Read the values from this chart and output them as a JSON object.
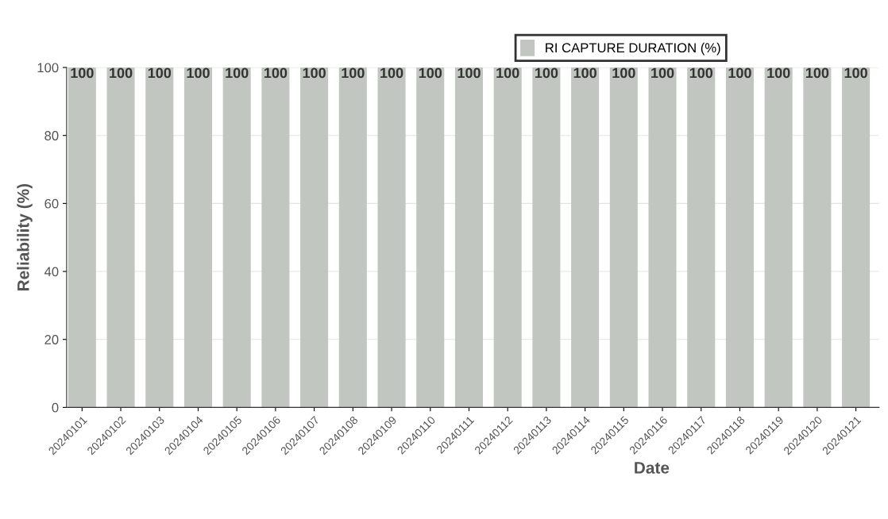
{
  "chart_data": {
    "type": "bar",
    "xlabel": "Date",
    "ylabel": "Reliability (%)",
    "categories": [
      "20240101",
      "20240102",
      "20240103",
      "20240104",
      "20240105",
      "20240106",
      "20240107",
      "20240108",
      "20240109",
      "20240110",
      "20240111",
      "20240112",
      "20240113",
      "20240114",
      "20240115",
      "20240116",
      "20240117",
      "20240118",
      "20240119",
      "20240120",
      "20240121"
    ],
    "series": [
      {
        "name": "RI CAPTURE DURATION (%)",
        "color": "#c1c7c0",
        "values": [
          100,
          100,
          100,
          100,
          100,
          100,
          100,
          100,
          100,
          100,
          100,
          100,
          100,
          100,
          100,
          100,
          100,
          100,
          100,
          100,
          100
        ]
      }
    ],
    "ylim": [
      0,
      100
    ],
    "yticks": [
      0,
      20,
      40,
      60,
      80,
      100
    ],
    "grid": "y",
    "legend": "top right",
    "data_labels": true
  }
}
